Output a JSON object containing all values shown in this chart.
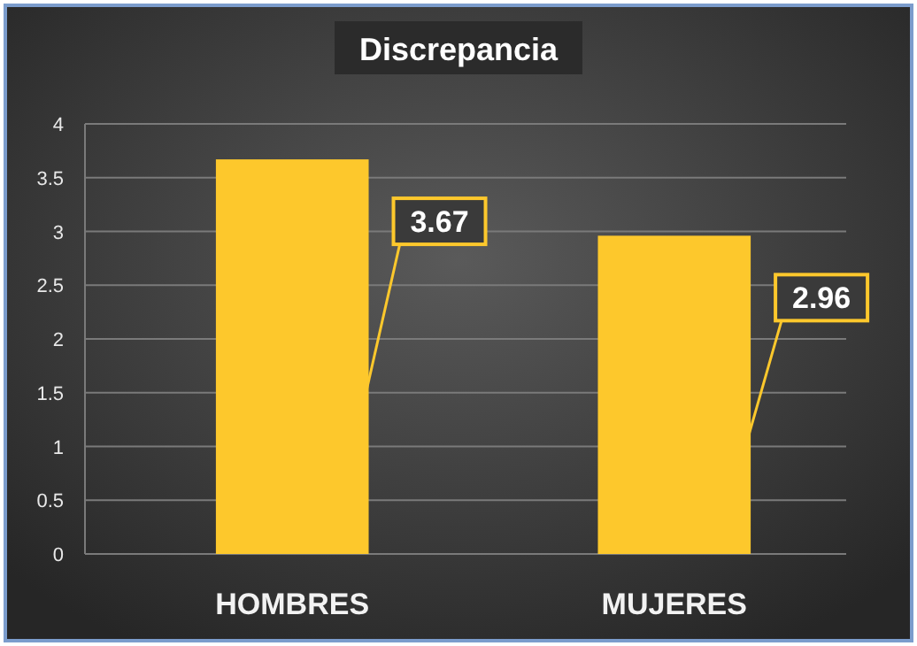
{
  "chart_data": {
    "type": "bar",
    "title": "Discrepancia",
    "categories": [
      "HOMBRES",
      "MUJERES"
    ],
    "values": [
      3.67,
      2.96
    ],
    "color": "#fdc82c",
    "ylim": [
      0,
      4
    ],
    "yticks": [
      0,
      0.5,
      1,
      1.5,
      2,
      2.5,
      3,
      3.5,
      4
    ],
    "grid": "y",
    "data_labels": true
  }
}
